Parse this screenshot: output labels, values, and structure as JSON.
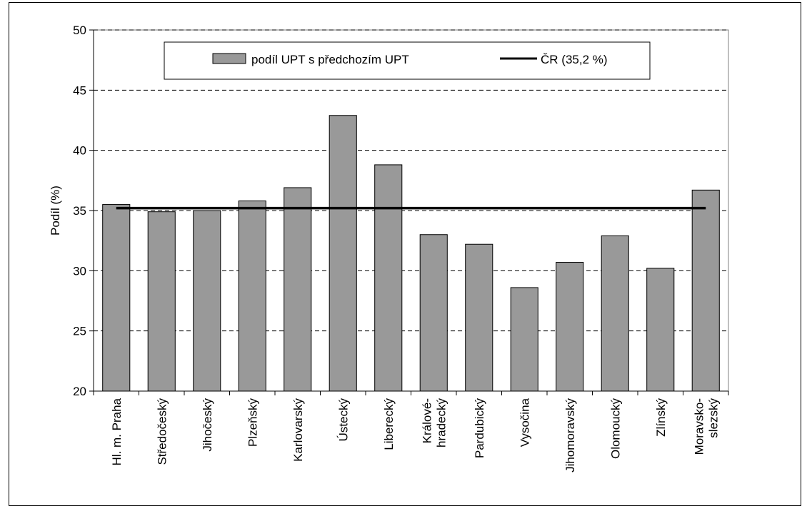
{
  "chart_data": {
    "type": "bar",
    "title": "",
    "xlabel": "",
    "ylabel": "Podíl (%)",
    "ylim": [
      20,
      50
    ],
    "yticks": [
      20,
      25,
      30,
      35,
      40,
      45,
      50
    ],
    "grid": "dashed horizontal",
    "legend_position": "top",
    "categories": [
      "Hl. m. Praha",
      "Středočeský",
      "Jihočeský",
      "Plzeňský",
      "Karlovarský",
      "Ústecký",
      "Liberecký",
      "Králové-\nhradecký",
      "Pardubický",
      "Vysočina",
      "Jihomoravský",
      "Olomoucký",
      "Zlínský",
      "Moravsko-\nslezský"
    ],
    "series": [
      {
        "name": "podíl UPT s předchozím UPT",
        "type": "bar",
        "color": "#999999",
        "values": [
          35.5,
          34.9,
          35.0,
          35.8,
          36.9,
          42.9,
          38.8,
          33.0,
          32.2,
          28.6,
          30.7,
          32.9,
          30.2,
          36.7
        ]
      },
      {
        "name": "ČR (35,2 %)",
        "type": "line",
        "color": "#000000",
        "value": 35.2
      }
    ]
  }
}
